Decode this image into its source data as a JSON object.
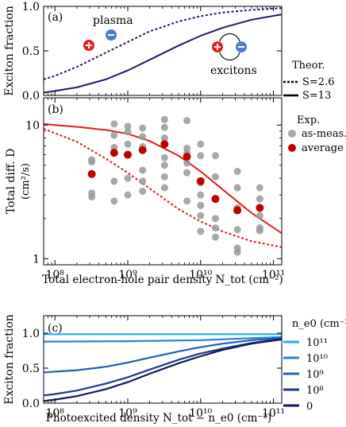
{
  "chart_data": [
    {
      "type": "line",
      "panel_label": "(a)",
      "ylabel": "Exciton fraction",
      "xscale": "log",
      "xlim": [
        70000000.0,
        130000000000.0
      ],
      "ylim": [
        0,
        1.0
      ],
      "yticks": [
        "0.0",
        "0.5",
        "1.0"
      ],
      "annotations": {
        "plasma": "plasma",
        "excitons": "excitons"
      },
      "legend": {
        "title": "Theor.",
        "entries": [
          "S=2.6",
          "S=13"
        ],
        "placement": "right"
      },
      "series": [
        {
          "name": "S=2.6",
          "style": "dotted",
          "color": "#1a1a6e",
          "x": [
            70000000.0,
            100000000.0,
            200000000.0,
            500000000.0,
            1000000000.0,
            2000000000.0,
            5000000000.0,
            10000000000.0,
            20000000000.0,
            50000000000.0,
            130000000000.0
          ],
          "y": [
            0.18,
            0.22,
            0.32,
            0.48,
            0.6,
            0.72,
            0.83,
            0.89,
            0.93,
            0.96,
            0.98
          ]
        },
        {
          "name": "S=13",
          "style": "solid",
          "color": "#1a1a6e",
          "x": [
            70000000.0,
            100000000.0,
            200000000.0,
            500000000.0,
            1000000000.0,
            2000000000.0,
            5000000000.0,
            10000000000.0,
            20000000000.0,
            50000000000.0,
            130000000000.0
          ],
          "y": [
            0.03,
            0.05,
            0.09,
            0.18,
            0.28,
            0.4,
            0.56,
            0.67,
            0.76,
            0.85,
            0.91
          ]
        }
      ]
    },
    {
      "type": "scatter",
      "panel_label": "(b)",
      "ylabel_line1": "Total diff. D",
      "ylabel_line2": "(cm²/s)",
      "xlabel": "Total electron-hole pair density N_tot (cm⁻²)",
      "xscale": "log",
      "yscale": "log",
      "xlim": [
        70000000.0,
        130000000000.0
      ],
      "ylim": [
        0.9,
        16
      ],
      "yticks": [
        1,
        10
      ],
      "xticks": [
        "10⁸",
        "10⁹",
        "10¹⁰",
        "10¹¹"
      ],
      "legend": {
        "title": "Exp.",
        "entries": [
          "as-meas.",
          "average"
        ],
        "placement": "right"
      },
      "as_measured": {
        "color": "#999999",
        "points": [
          [
            320000000.0,
            5.5
          ],
          [
            320000000.0,
            5.3
          ],
          [
            320000000.0,
            3.1
          ],
          [
            320000000.0,
            2.9
          ],
          [
            650000000.0,
            10.2
          ],
          [
            650000000.0,
            8.4
          ],
          [
            650000000.0,
            6.8
          ],
          [
            650000000.0,
            3.8
          ],
          [
            650000000.0,
            2.7
          ],
          [
            1000000000.0,
            9.8
          ],
          [
            1000000000.0,
            8.9
          ],
          [
            1000000000.0,
            7.2
          ],
          [
            1000000000.0,
            4.0
          ],
          [
            1000000000.0,
            3.0
          ],
          [
            1600000000.0,
            9.5
          ],
          [
            1600000000.0,
            8.2
          ],
          [
            1600000000.0,
            6.9
          ],
          [
            1600000000.0,
            4.6
          ],
          [
            1600000000.0,
            3.8
          ],
          [
            1600000000.0,
            3.2
          ],
          [
            3200000000.0,
            11.0
          ],
          [
            3200000000.0,
            9.6
          ],
          [
            3200000000.0,
            8.0
          ],
          [
            3200000000.0,
            5.7
          ],
          [
            3200000000.0,
            5.0
          ],
          [
            3200000000.0,
            4.1
          ],
          [
            3200000000.0,
            3.4
          ],
          [
            6500000000.0,
            10.8
          ],
          [
            6500000000.0,
            6.7
          ],
          [
            6500000000.0,
            6.2
          ],
          [
            6500000000.0,
            5.2
          ],
          [
            6500000000.0,
            4.4
          ],
          [
            6500000000.0,
            2.7
          ],
          [
            10000000000.0,
            7.2
          ],
          [
            10000000000.0,
            5.9
          ],
          [
            10000000000.0,
            3.7
          ],
          [
            10000000000.0,
            3.0
          ],
          [
            10000000000.0,
            2.5
          ],
          [
            10000000000.0,
            2.1
          ],
          [
            10000000000.0,
            1.6
          ],
          [
            16000000000.0,
            5.9
          ],
          [
            16000000000.0,
            4.1
          ],
          [
            16000000000.0,
            2.0
          ],
          [
            16000000000.0,
            1.7
          ],
          [
            16000000000.0,
            1.45
          ],
          [
            32000000000.0,
            4.5
          ],
          [
            32000000000.0,
            3.4
          ],
          [
            32000000000.0,
            2.4
          ],
          [
            32000000000.0,
            1.65
          ],
          [
            32000000000.0,
            1.2
          ],
          [
            32000000000.0,
            1.12
          ],
          [
            65000000000.0,
            3.4
          ],
          [
            65000000000.0,
            2.8
          ],
          [
            65000000000.0,
            2.1
          ],
          [
            65000000000.0,
            1.7
          ],
          [
            65000000000.0,
            1.62
          ]
        ]
      },
      "average": {
        "color": "#c00000",
        "points": [
          [
            320000000.0,
            4.3
          ],
          [
            650000000.0,
            6.2
          ],
          [
            1000000000.0,
            6.0
          ],
          [
            1600000000.0,
            6.5
          ],
          [
            3200000000.0,
            7.2
          ],
          [
            6500000000.0,
            5.8
          ],
          [
            10000000000.0,
            3.8
          ],
          [
            16000000000.0,
            2.8
          ],
          [
            32000000000.0,
            2.3
          ],
          [
            65000000000.0,
            2.4
          ]
        ]
      },
      "series": [
        {
          "name": "S=13",
          "style": "solid",
          "color": "#e0201b",
          "x": [
            70000000.0,
            100000000.0,
            200000000.0,
            500000000.0,
            1000000000.0,
            2000000000.0,
            5000000000.0,
            10000000000.0,
            20000000000.0,
            50000000000.0,
            130000000000.0
          ],
          "y": [
            10.2,
            10.0,
            9.7,
            9.2,
            8.6,
            7.6,
            5.9,
            4.5,
            3.3,
            2.2,
            1.55
          ]
        },
        {
          "name": "S=2.6",
          "style": "dotted",
          "color": "#e0201b",
          "x": [
            70000000.0,
            100000000.0,
            200000000.0,
            500000000.0,
            1000000000.0,
            2000000000.0,
            5000000000.0,
            10000000000.0,
            20000000000.0,
            50000000000.0,
            130000000000.0
          ],
          "y": [
            9.4,
            8.7,
            7.5,
            5.6,
            4.4,
            3.35,
            2.35,
            1.9,
            1.6,
            1.35,
            1.22
          ]
        }
      ]
    },
    {
      "type": "line",
      "panel_label": "(c)",
      "ylabel": "Exciton fraction",
      "xlabel": "Photoexcited density N_tot − n_e0 (cm⁻²)",
      "xscale": "log",
      "xlim": [
        70000000.0,
        130000000000.0
      ],
      "ylim": [
        0,
        1.25
      ],
      "yticks": [
        "0.0",
        "0.5",
        "1.0"
      ],
      "xticks": [
        "10⁸",
        "10⁹",
        "10¹⁰",
        "10¹¹"
      ],
      "legend": {
        "title": "n_e0 (cm⁻²)",
        "placement": "right"
      },
      "series": [
        {
          "name": "10¹¹",
          "color": "#29a9ee",
          "x": [
            70000000.0,
            100000000.0,
            1000000000.0,
            10000000000.0,
            130000000000.0
          ],
          "y": [
            0.985,
            0.985,
            0.985,
            0.985,
            0.985
          ]
        },
        {
          "name": "10¹⁰",
          "color": "#1f86d8",
          "x": [
            70000000.0,
            100000000.0,
            1000000000.0,
            10000000000.0,
            130000000000.0
          ],
          "y": [
            0.88,
            0.88,
            0.885,
            0.9,
            0.945
          ]
        },
        {
          "name": "10⁹",
          "color": "#1f5fb8",
          "x": [
            70000000.0,
            100000000.0,
            200000000.0,
            500000000.0,
            1000000000.0,
            2000000000.0,
            5000000000.0,
            10000000000.0,
            20000000000.0,
            50000000000.0,
            130000000000.0
          ],
          "y": [
            0.44,
            0.45,
            0.47,
            0.52,
            0.58,
            0.65,
            0.74,
            0.8,
            0.85,
            0.9,
            0.93
          ]
        },
        {
          "name": "10⁸",
          "color": "#1a3a8f",
          "x": [
            70000000.0,
            100000000.0,
            200000000.0,
            500000000.0,
            1000000000.0,
            2000000000.0,
            5000000000.0,
            10000000000.0,
            20000000000.0,
            50000000000.0,
            130000000000.0
          ],
          "y": [
            0.11,
            0.13,
            0.18,
            0.28,
            0.37,
            0.48,
            0.62,
            0.71,
            0.78,
            0.86,
            0.92
          ]
        },
        {
          "name": "0",
          "color": "#101a60",
          "x": [
            70000000.0,
            100000000.0,
            200000000.0,
            500000000.0,
            1000000000.0,
            2000000000.0,
            5000000000.0,
            10000000000.0,
            20000000000.0,
            50000000000.0,
            130000000000.0
          ],
          "y": [
            0.03,
            0.05,
            0.1,
            0.2,
            0.3,
            0.42,
            0.57,
            0.67,
            0.76,
            0.85,
            0.91
          ]
        }
      ]
    }
  ]
}
